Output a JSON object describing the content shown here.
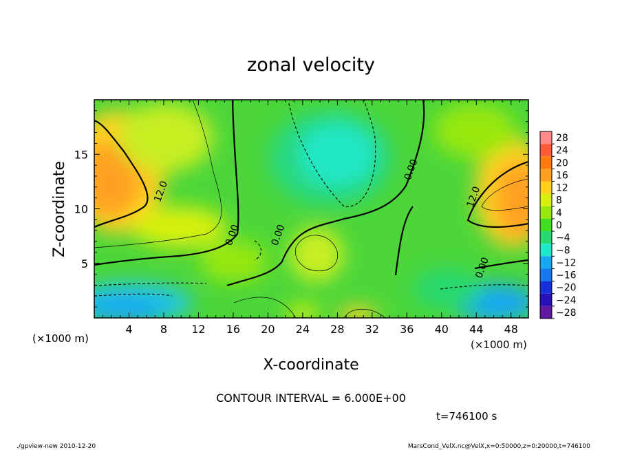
{
  "chart_data": {
    "type": "heatmap",
    "title": "zonal velocity",
    "xlabel": "X-coordinate",
    "ylabel": "Z-coordinate",
    "x_unit": "(×1000 m)",
    "y_unit": "(×1000 m)",
    "x_ticks": [
      "4",
      "8",
      "12",
      "16",
      "20",
      "24",
      "28",
      "32",
      "36",
      "40",
      "44",
      "48"
    ],
    "y_ticks": [
      "5",
      "10",
      "15"
    ],
    "xlim": [
      0,
      50
    ],
    "ylim": [
      0,
      20
    ],
    "colorbar_levels": [
      "28",
      "24",
      "20",
      "16",
      "12",
      "8",
      "4",
      "0",
      "−4",
      "−8",
      "−12",
      "−16",
      "−20",
      "−24",
      "−28"
    ],
    "colorbar_colors": [
      "#ff8a8a",
      "#ff5a3a",
      "#ff7a10",
      "#ffa020",
      "#ffd020",
      "#d8f010",
      "#98e810",
      "#40dd20",
      "#28d870",
      "#20e8c8",
      "#18a8f0",
      "#1878ee",
      "#1830d8",
      "#2810b8",
      "#6018a0"
    ],
    "contour_labels": [
      {
        "text": "12.0",
        "x": 8,
        "y": 11.5
      },
      {
        "text": "0.00",
        "x": 16.2,
        "y": 7.5
      },
      {
        "text": "0.00",
        "x": 21.5,
        "y": 7.5
      },
      {
        "text": "0.00",
        "x": 36.8,
        "y": 13.5
      },
      {
        "text": "12.0",
        "x": 44,
        "y": 11
      },
      {
        "text": "0.00",
        "x": 45,
        "y": 4.5
      }
    ],
    "contour_interval_text": "CONTOUR INTERVAL = 6.000E+00",
    "time_text": "t=746100 s"
  },
  "footer": {
    "left": "./gpview-new  2010-12-20",
    "right": "MarsCond_VelX.nc@VelX,x=0:50000,z=0:20000,t=746100"
  }
}
